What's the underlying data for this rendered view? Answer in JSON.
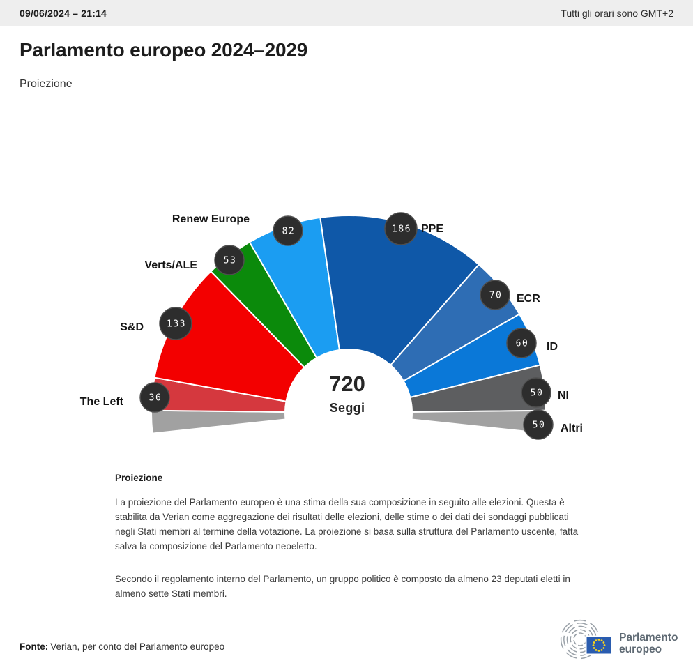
{
  "header": {
    "datetime": "09/06/2024 – 21:14",
    "timezone_note": "Tutti gli orari sono GMT+2"
  },
  "page": {
    "title": "Parlamento europeo 2024–2029",
    "subtitle": "Proiezione"
  },
  "chart_data": {
    "type": "hemicycle",
    "title": "Parlamento europeo 2024–2029",
    "total_seats": 720,
    "center": {
      "value": "720",
      "label": "Seggi"
    },
    "groups": [
      {
        "name": "The Left",
        "seats": 36,
        "color": "#d5383e"
      },
      {
        "name": "S&D",
        "seats": 133,
        "color": "#f30000"
      },
      {
        "name": "Verts/ALE",
        "seats": 53,
        "color": "#0b8a0b"
      },
      {
        "name": "Renew Europe",
        "seats": 82,
        "color": "#1b9df2"
      },
      {
        "name": "PPE",
        "seats": 186,
        "color": "#0f58a8"
      },
      {
        "name": "ECR",
        "seats": 70,
        "color": "#2e6db4"
      },
      {
        "name": "ID",
        "seats": 60,
        "color": "#0a78d8"
      },
      {
        "name": "NI",
        "seats": 50,
        "color": "#5d5e60"
      },
      {
        "name": "Altri",
        "seats": 50,
        "color": "#a1a1a1",
        "split_both_ends": true
      }
    ],
    "layout_hints": {
      "arc_span_degrees": 192,
      "badge_style": "dark-circle-white-number",
      "legend": "labels around outer rim"
    }
  },
  "description": {
    "heading": "Proiezione",
    "paragraphs": [
      "La proiezione del Parlamento europeo è una stima della sua composizione in seguito alle elezioni. Questa è stabilita da Verian come aggregazione dei risultati delle elezioni, delle stime o dei dati dei sondaggi pubblicati negli Stati membri al termine della votazione. La proiezione si basa sulla struttura del Parlamento uscente, fatta salva la composizione del Parlamento neoeletto.",
      "Secondo il regolamento interno del Parlamento, un gruppo politico è composto da almeno 23 deputati eletti in almeno sette Stati membri."
    ]
  },
  "footer": {
    "source_label": "Fonte:",
    "source_text": "Verian, per conto del Parlamento europeo",
    "logo_text_line1": "Parlamento",
    "logo_text_line2": "europeo"
  }
}
